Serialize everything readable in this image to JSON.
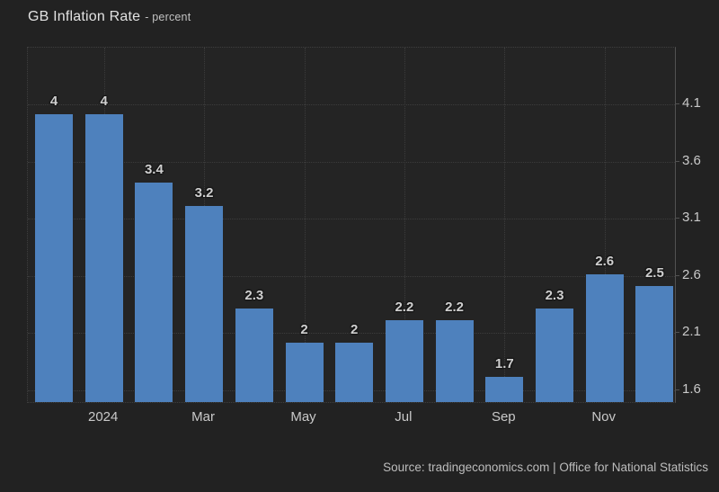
{
  "header": {
    "title": "GB Inflation Rate",
    "subtitle": "- percent"
  },
  "chart_data": {
    "type": "bar",
    "title": "GB Inflation Rate",
    "unit_label": "percent",
    "values": [
      4,
      4,
      3.4,
      3.2,
      2.3,
      2,
      2,
      2.2,
      2.2,
      1.7,
      2.3,
      2.6,
      2.5
    ],
    "bar_value_labels": [
      "4",
      "4",
      "3.4",
      "3.2",
      "2.3",
      "2",
      "2",
      "2.2",
      "2.2",
      "1.7",
      "2.3",
      "2.6",
      "2.5"
    ],
    "x_ticks": [
      {
        "label": "2024",
        "bar_index": 1
      },
      {
        "label": "Mar",
        "bar_index": 3
      },
      {
        "label": "May",
        "bar_index": 5
      },
      {
        "label": "Jul",
        "bar_index": 7
      },
      {
        "label": "Sep",
        "bar_index": 9
      },
      {
        "label": "Nov",
        "bar_index": 11
      }
    ],
    "y_ticks": [
      "4.1",
      "3.6",
      "3.1",
      "2.6",
      "2.1",
      "1.6"
    ],
    "y_range": [
      1.48,
      4.6
    ],
    "grid": "dotted",
    "legend_position": "none",
    "bar_color": "#4e81bd",
    "background_color": "#222222",
    "plot_background_color": "#242424"
  },
  "footer": {
    "source": "Source: tradingeconomics.com | Office for National Statistics"
  }
}
